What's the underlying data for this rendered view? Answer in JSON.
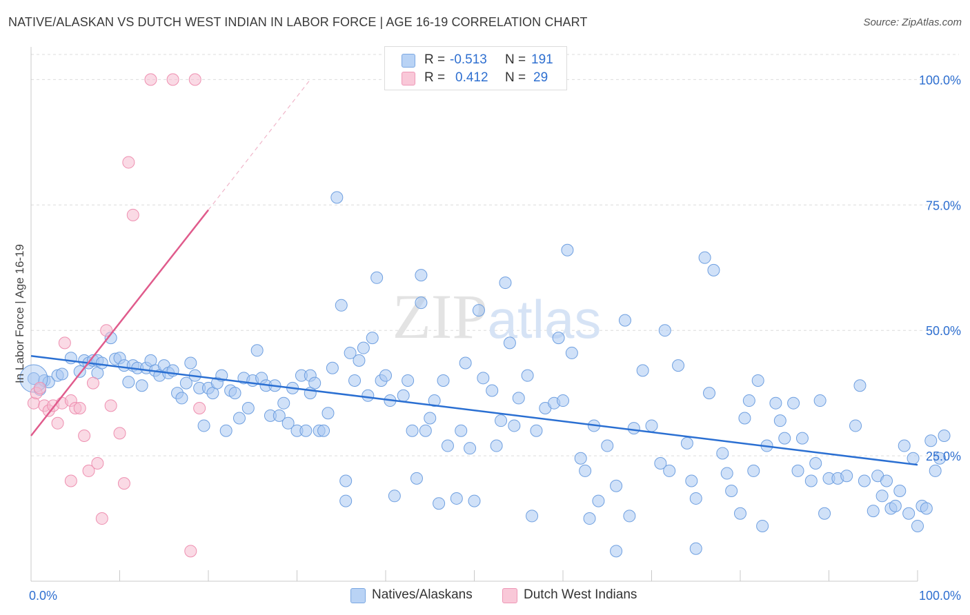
{
  "title": "NATIVE/ALASKAN VS DUTCH WEST INDIAN IN LABOR FORCE | AGE 16-19 CORRELATION CHART",
  "source": "Source: ZipAtlas.com",
  "watermark": "ZIPatlas",
  "colors": {
    "blue_fill": "#a9c8f2",
    "blue_stroke": "#6e9fe0",
    "blue_line": "#2a6fd2",
    "pink_fill": "#f6bcd0",
    "pink_stroke": "#ee8fb0",
    "pink_line": "#e05b8c",
    "value_text": "#2e6fd0"
  },
  "legend": {
    "rows": [
      {
        "r_label": "R =",
        "r_value": "-0.513",
        "n_label": "N =",
        "n_value": "191"
      },
      {
        "r_label": "R =",
        "r_value": "0.412",
        "n_label": "N =",
        "n_value": "29"
      }
    ]
  },
  "chart_data": {
    "type": "scatter",
    "title": "NATIVE/ALASKAN VS DUTCH WEST INDIAN IN LABOR FORCE | AGE 16-19 CORRELATION CHART",
    "ylabel": "In Labor Force | Age 16-19",
    "xlabel": "",
    "xlim": [
      0,
      100
    ],
    "ylim": [
      0,
      105
    ],
    "x_tick_labels": [
      "0.0%",
      "100.0%"
    ],
    "y_ticks": [
      25,
      50,
      75,
      100
    ],
    "y_tick_labels": [
      "25.0%",
      "50.0%",
      "75.0%",
      "100.0%"
    ],
    "grid": true,
    "legend_position": "top-center",
    "series": [
      {
        "name": "Natives/Alaskans",
        "color": "#a9c8f2",
        "trend": {
          "x": [
            0,
            100
          ],
          "y": [
            44.9,
            23.2
          ]
        },
        "points": [
          [
            0.3,
            40.4
          ],
          [
            1,
            38.2
          ],
          [
            1.5,
            40
          ],
          [
            2,
            39.7
          ],
          [
            3,
            41
          ],
          [
            3.5,
            41.3
          ],
          [
            4.5,
            44.5
          ],
          [
            5.5,
            41.8
          ],
          [
            6,
            44
          ],
          [
            6.5,
            43.5
          ],
          [
            7,
            44
          ],
          [
            7.5,
            44
          ],
          [
            7.5,
            41.5
          ],
          [
            8,
            43.5
          ],
          [
            9,
            48.5
          ],
          [
            9.5,
            44.3
          ],
          [
            10,
            44.5
          ],
          [
            10.5,
            43
          ],
          [
            11,
            39.7
          ],
          [
            11.5,
            43
          ],
          [
            12,
            42.5
          ],
          [
            12.5,
            39
          ],
          [
            13,
            42.5
          ],
          [
            13.5,
            44
          ],
          [
            14,
            42
          ],
          [
            14.5,
            41
          ],
          [
            15,
            43
          ],
          [
            15.5,
            41.5
          ],
          [
            16,
            42
          ],
          [
            16.5,
            37.5
          ],
          [
            17,
            36.5
          ],
          [
            17.5,
            39.5
          ],
          [
            18,
            43.5
          ],
          [
            18.5,
            41
          ],
          [
            19,
            38.5
          ],
          [
            19.5,
            31
          ],
          [
            20,
            38.5
          ],
          [
            20.5,
            37.5
          ],
          [
            21,
            39.5
          ],
          [
            21.5,
            41
          ],
          [
            22,
            30
          ],
          [
            22.5,
            38
          ],
          [
            23,
            37.5
          ],
          [
            23.5,
            32.5
          ],
          [
            24,
            40.5
          ],
          [
            24.5,
            34.5
          ],
          [
            25,
            40
          ],
          [
            25.5,
            46
          ],
          [
            26,
            40.5
          ],
          [
            26.5,
            39
          ],
          [
            27,
            33
          ],
          [
            27.5,
            39
          ],
          [
            28,
            33
          ],
          [
            28.5,
            35.5
          ],
          [
            29,
            31.5
          ],
          [
            29.5,
            38.5
          ],
          [
            30,
            30
          ],
          [
            30.5,
            41
          ],
          [
            31,
            30
          ],
          [
            31.5,
            41
          ],
          [
            31.5,
            37.5
          ],
          [
            32,
            39.5
          ],
          [
            32.5,
            30
          ],
          [
            33,
            30
          ],
          [
            33.5,
            33.5
          ],
          [
            34,
            42.5
          ],
          [
            34.5,
            76.5
          ],
          [
            35,
            55
          ],
          [
            35.5,
            20
          ],
          [
            35.5,
            16
          ],
          [
            36,
            45.5
          ],
          [
            36.5,
            40
          ],
          [
            37,
            44
          ],
          [
            37.5,
            46.5
          ],
          [
            38,
            37
          ],
          [
            38.5,
            48.5
          ],
          [
            39,
            60.5
          ],
          [
            39.5,
            40
          ],
          [
            40,
            41
          ],
          [
            40.5,
            36
          ],
          [
            41,
            17
          ],
          [
            42,
            37
          ],
          [
            42.5,
            40
          ],
          [
            43,
            30
          ],
          [
            43.5,
            20.5
          ],
          [
            44,
            61
          ],
          [
            44,
            55.5
          ],
          [
            44.5,
            30
          ],
          [
            45,
            32.5
          ],
          [
            45.5,
            36
          ],
          [
            46,
            15.5
          ],
          [
            46.5,
            40
          ],
          [
            47,
            27
          ],
          [
            48,
            16.5
          ],
          [
            48.5,
            30
          ],
          [
            49,
            43.5
          ],
          [
            49.5,
            26.5
          ],
          [
            50,
            16
          ],
          [
            50.5,
            54
          ],
          [
            51,
            40.5
          ],
          [
            52,
            38
          ],
          [
            52.5,
            27
          ],
          [
            53,
            32
          ],
          [
            53.5,
            59.5
          ],
          [
            54,
            47.5
          ],
          [
            54.5,
            31
          ],
          [
            55,
            36.5
          ],
          [
            56,
            41
          ],
          [
            56.5,
            13
          ],
          [
            57,
            30
          ],
          [
            58,
            34.5
          ],
          [
            59,
            35.5
          ],
          [
            59.5,
            48.5
          ],
          [
            60,
            36
          ],
          [
            60.5,
            66
          ],
          [
            61,
            45.5
          ],
          [
            62,
            24.5
          ],
          [
            62.5,
            22
          ],
          [
            63,
            12.5
          ],
          [
            63.5,
            31
          ],
          [
            64,
            16
          ],
          [
            65,
            27
          ],
          [
            66,
            19
          ],
          [
            67,
            52
          ],
          [
            67.5,
            13
          ],
          [
            68,
            30.5
          ],
          [
            69,
            42
          ],
          [
            70,
            31
          ],
          [
            71,
            23.5
          ],
          [
            71.5,
            50
          ],
          [
            72,
            22
          ],
          [
            73,
            43
          ],
          [
            74,
            27.5
          ],
          [
            74.5,
            20
          ],
          [
            75,
            16.5
          ],
          [
            76,
            64.5
          ],
          [
            76.5,
            37.5
          ],
          [
            77,
            62
          ],
          [
            78,
            25.5
          ],
          [
            78.5,
            21.5
          ],
          [
            79,
            18
          ],
          [
            80,
            13.5
          ],
          [
            80.5,
            32.5
          ],
          [
            81,
            36
          ],
          [
            81.5,
            22
          ],
          [
            82,
            40
          ],
          [
            82.5,
            11
          ],
          [
            83,
            27
          ],
          [
            84,
            35.5
          ],
          [
            84.5,
            32
          ],
          [
            85,
            28.5
          ],
          [
            86,
            35.5
          ],
          [
            86.5,
            22
          ],
          [
            87,
            28.5
          ],
          [
            88,
            20
          ],
          [
            88.5,
            23.5
          ],
          [
            89,
            36
          ],
          [
            89.5,
            13.5
          ],
          [
            90,
            20.5
          ],
          [
            91,
            20.5
          ],
          [
            92,
            21
          ],
          [
            93,
            31
          ],
          [
            93.5,
            39
          ],
          [
            94,
            20
          ],
          [
            95,
            14
          ],
          [
            95.5,
            21
          ],
          [
            96,
            17
          ],
          [
            96.5,
            20
          ],
          [
            97,
            14.5
          ],
          [
            97.5,
            15
          ],
          [
            98,
            18
          ],
          [
            98.5,
            27
          ],
          [
            99,
            13.5
          ],
          [
            99.5,
            24.5
          ],
          [
            100,
            11
          ],
          [
            100.5,
            15
          ],
          [
            101,
            14.5
          ],
          [
            101.5,
            28
          ],
          [
            102,
            22
          ],
          [
            102.5,
            24.5
          ],
          [
            103,
            29
          ],
          [
            66,
            6
          ],
          [
            75,
            6.5
          ]
        ]
      },
      {
        "name": "Dutch West Indians",
        "color": "#f6bcd0",
        "trend": {
          "x": [
            0,
            20
          ],
          "y": [
            29,
            74
          ]
        },
        "trend_extension": {
          "x": [
            20,
            31.5
          ],
          "y": [
            74,
            100
          ]
        },
        "points": [
          [
            0.3,
            35.5
          ],
          [
            0.6,
            37.5
          ],
          [
            1,
            38.5
          ],
          [
            1.5,
            35
          ],
          [
            2,
            34
          ],
          [
            2.5,
            35
          ],
          [
            3,
            31.5
          ],
          [
            3.5,
            35.5
          ],
          [
            3.8,
            47.5
          ],
          [
            4.5,
            36
          ],
          [
            5,
            34.5
          ],
          [
            5.5,
            34.5
          ],
          [
            4.5,
            20
          ],
          [
            6,
            29
          ],
          [
            6.5,
            22
          ],
          [
            7,
            39.5
          ],
          [
            7.5,
            23.5
          ],
          [
            8,
            12.5
          ],
          [
            8.5,
            50
          ],
          [
            9,
            35
          ],
          [
            10,
            29.5
          ],
          [
            10.5,
            19.5
          ],
          [
            11,
            83.5
          ],
          [
            11.5,
            73
          ],
          [
            13.5,
            100
          ],
          [
            16,
            100
          ],
          [
            18.5,
            100
          ],
          [
            18,
            6
          ],
          [
            19,
            34.5
          ]
        ]
      }
    ]
  },
  "bottom_legend": [
    {
      "label": "Natives/Alaskans"
    },
    {
      "label": "Dutch West Indians"
    }
  ]
}
